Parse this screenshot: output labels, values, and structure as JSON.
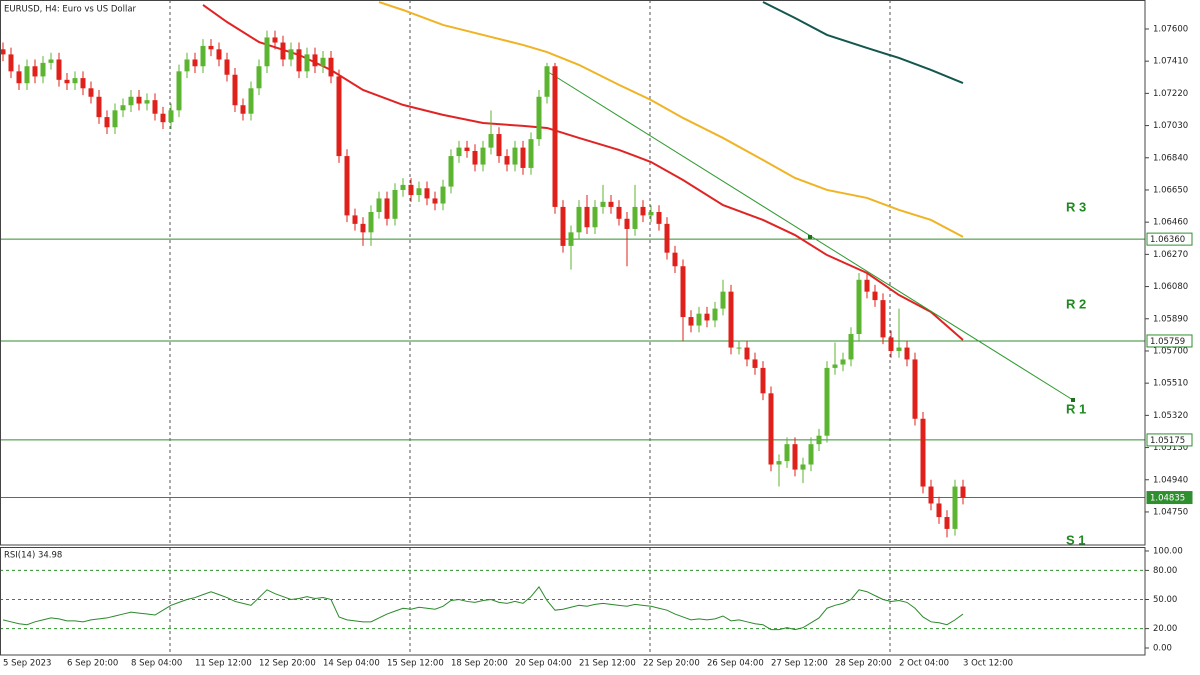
{
  "chart_data": {
    "type": "candlestick",
    "title": "EURUSD, H4:  Euro vs US Dollar",
    "categories": [
      "5 Sep 2023",
      null,
      null,
      null,
      null,
      null,
      null,
      null,
      "6 Sep 20:00",
      null,
      null,
      null,
      null,
      null,
      null,
      null,
      "8 Sep 04:00",
      null,
      null,
      null,
      null,
      null,
      null,
      null,
      "11 Sep 12:00",
      null,
      null,
      null,
      null,
      null,
      null,
      null,
      "12 Sep 20:00",
      null,
      null,
      null,
      null,
      null,
      null,
      null,
      "14 Sep 04:00",
      null,
      null,
      null,
      null,
      null,
      null,
      null,
      "15 Sep 12:00",
      null,
      null,
      null,
      null,
      null,
      null,
      null,
      "18 Sep 20:00",
      null,
      null,
      null,
      null,
      null,
      null,
      null,
      "20 Sep 04:00",
      null,
      null,
      null,
      null,
      null,
      null,
      null,
      "21 Sep 12:00",
      null,
      null,
      null,
      null,
      null,
      null,
      null,
      "22 Sep 20:00",
      null,
      null,
      null,
      null,
      null,
      null,
      null,
      "26 Sep 04:00",
      null,
      null,
      null,
      null,
      null,
      null,
      null,
      "27 Sep 12:00",
      null,
      null,
      null,
      null,
      null,
      null,
      null,
      "28 Sep 20:00",
      null,
      null,
      null,
      null,
      null,
      null,
      null,
      "2 Oct 04:00",
      null,
      null,
      null,
      null,
      null,
      null,
      null,
      "3 Oct 12:00"
    ],
    "open": [
      1.0748,
      1.0745,
      1.0735,
      1.0728,
      1.0738,
      1.0732,
      1.074,
      1.0742,
      1.073,
      1.0728,
      1.0731,
      1.0725,
      1.072,
      1.0708,
      1.0702,
      1.0712,
      1.0715,
      1.072,
      1.0716,
      1.0718,
      1.071,
      1.0705,
      1.0712,
      1.0735,
      1.0742,
      1.0738,
      1.075,
      1.0748,
      1.0742,
      1.0733,
      1.0715,
      1.071,
      1.0725,
      1.0738,
      1.0755,
      1.0752,
      1.0742,
      1.0748,
      1.0735,
      1.0745,
      1.0738,
      1.0743,
      1.0732,
      1.0685,
      1.065,
      1.0645,
      1.064,
      1.0652,
      1.066,
      1.0648,
      1.0665,
      1.0668,
      1.0662,
      1.0666,
      1.066,
      1.0657,
      1.0667,
      1.0685,
      1.069,
      1.0688,
      1.068,
      1.069,
      1.0698,
      1.0685,
      1.068,
      1.069,
      1.0678,
      1.0695,
      1.072,
      1.0738,
      1.0655,
      1.0632,
      1.064,
      1.0655,
      1.0643,
      1.0655,
      1.0658,
      1.0655,
      1.0648,
      1.0642,
      1.0655,
      1.065,
      1.0652,
      1.0645,
      1.0628,
      1.062,
      1.059,
      1.0585,
      1.0592,
      1.0588,
      1.0595,
      1.0605,
      1.0572,
      1.0572,
      1.0565,
      1.056,
      1.0545,
      1.0503,
      1.0505,
      1.0515,
      1.05,
      1.0503,
      1.0515,
      1.052,
      1.056,
      1.0562,
      1.0565,
      1.058,
      1.0612,
      1.0605,
      1.06,
      1.0578,
      1.057,
      1.0572,
      1.0565,
      1.053,
      1.049,
      1.048,
      1.0472,
      1.0465,
      1.049
    ],
    "high": [
      1.0752,
      1.0749,
      1.0739,
      1.0742,
      1.0742,
      1.0744,
      1.0746,
      1.0746,
      1.0734,
      1.0735,
      1.0735,
      1.0729,
      1.0724,
      1.0712,
      1.0716,
      1.0719,
      1.0724,
      1.0724,
      1.0722,
      1.0722,
      1.0714,
      1.0716,
      1.0739,
      1.0746,
      1.0746,
      1.0754,
      1.0754,
      1.0752,
      1.0746,
      1.0737,
      1.0719,
      1.0729,
      1.0742,
      1.0759,
      1.0759,
      1.0756,
      1.0752,
      1.0752,
      1.0749,
      1.0749,
      1.0747,
      1.0747,
      1.0736,
      1.0689,
      1.0654,
      1.0649,
      1.0656,
      1.0664,
      1.0664,
      1.0669,
      1.0672,
      1.0672,
      1.067,
      1.067,
      1.0664,
      1.0671,
      1.0689,
      1.0694,
      1.0694,
      1.0692,
      1.0694,
      1.0712,
      1.0702,
      1.0689,
      1.0694,
      1.0694,
      1.0699,
      1.0724,
      1.074,
      1.074,
      1.0659,
      1.0644,
      1.0659,
      1.0662,
      1.0659,
      1.0668,
      1.0662,
      1.0659,
      1.0652,
      1.0668,
      1.0659,
      1.0656,
      1.0656,
      1.0649,
      1.0632,
      1.0624,
      1.0594,
      1.0596,
      1.0596,
      1.0599,
      1.0612,
      1.0609,
      1.0576,
      1.0576,
      1.0569,
      1.0564,
      1.0549,
      1.0509,
      1.0519,
      1.0519,
      1.0507,
      1.0519,
      1.0524,
      1.0564,
      1.0575,
      1.0569,
      1.0584,
      1.0616,
      1.0616,
      1.0609,
      1.0604,
      1.0582,
      1.0595,
      1.0576,
      1.0569,
      1.0534,
      1.0494,
      1.0484,
      1.0476,
      1.0494,
      1.0494
    ],
    "low": [
      1.0741,
      1.0731,
      1.0724,
      1.0724,
      1.0728,
      1.0728,
      1.0736,
      1.0726,
      1.0724,
      1.0724,
      1.0721,
      1.0716,
      1.0704,
      1.0698,
      1.0698,
      1.0708,
      1.0711,
      1.0712,
      1.0712,
      1.0706,
      1.0701,
      1.0701,
      1.0708,
      1.0731,
      1.0734,
      1.0734,
      1.0744,
      1.0738,
      1.0729,
      1.0711,
      1.0706,
      1.0706,
      1.0721,
      1.0734,
      1.0748,
      1.0738,
      1.0738,
      1.0731,
      1.0731,
      1.0734,
      1.0734,
      1.0728,
      1.0681,
      1.0646,
      1.0641,
      1.0632,
      1.0632,
      1.0648,
      1.0644,
      1.0644,
      1.0661,
      1.0658,
      1.0658,
      1.0656,
      1.0653,
      1.0653,
      1.0663,
      1.0681,
      1.0684,
      1.0676,
      1.0676,
      1.0686,
      1.0681,
      1.0676,
      1.0676,
      1.0674,
      1.0674,
      1.0691,
      1.0716,
      1.0651,
      1.0628,
      1.0618,
      1.0636,
      1.0639,
      1.0639,
      1.0651,
      1.0651,
      1.0644,
      1.062,
      1.0638,
      1.0646,
      1.0646,
      1.0641,
      1.0624,
      1.0616,
      1.0576,
      1.0581,
      1.0581,
      1.0584,
      1.0584,
      1.0591,
      1.0568,
      1.0568,
      1.0561,
      1.0556,
      1.0541,
      1.0499,
      1.049,
      1.0501,
      1.0496,
      1.0492,
      1.0499,
      1.0511,
      1.0516,
      1.0556,
      1.0558,
      1.0561,
      1.0576,
      1.0601,
      1.0596,
      1.0574,
      1.0566,
      1.0566,
      1.0561,
      1.0526,
      1.0486,
      1.0476,
      1.0468,
      1.046,
      1.0461,
      1.04795
    ],
    "close": [
      1.0745,
      1.0735,
      1.0728,
      1.0738,
      1.0732,
      1.074,
      1.0742,
      1.073,
      1.0728,
      1.0731,
      1.0725,
      1.072,
      1.0708,
      1.0702,
      1.0712,
      1.0715,
      1.072,
      1.0716,
      1.0718,
      1.071,
      1.0705,
      1.0712,
      1.0735,
      1.0742,
      1.0738,
      1.075,
      1.0748,
      1.0742,
      1.0733,
      1.0715,
      1.071,
      1.0725,
      1.0738,
      1.0755,
      1.0752,
      1.0742,
      1.0748,
      1.0735,
      1.0745,
      1.0738,
      1.0743,
      1.0732,
      1.0685,
      1.065,
      1.0645,
      1.064,
      1.0652,
      1.066,
      1.0648,
      1.0665,
      1.0668,
      1.0662,
      1.0666,
      1.066,
      1.0657,
      1.0667,
      1.0685,
      1.069,
      1.0688,
      1.068,
      1.069,
      1.0698,
      1.0685,
      1.068,
      1.069,
      1.0678,
      1.0695,
      1.072,
      1.0738,
      1.0655,
      1.0632,
      1.064,
      1.0655,
      1.0643,
      1.0655,
      1.0658,
      1.0655,
      1.0648,
      1.0642,
      1.0655,
      1.065,
      1.0652,
      1.0645,
      1.0628,
      1.062,
      1.059,
      1.0585,
      1.0592,
      1.0588,
      1.0595,
      1.0605,
      1.0572,
      1.0572,
      1.0565,
      1.056,
      1.0545,
      1.0503,
      1.0505,
      1.0515,
      1.05,
      1.0503,
      1.0515,
      1.052,
      1.056,
      1.0562,
      1.0565,
      1.058,
      1.0612,
      1.0605,
      1.06,
      1.0578,
      1.057,
      1.0572,
      1.0565,
      1.053,
      1.049,
      1.048,
      1.0472,
      1.0465,
      1.049,
      1.04835
    ],
    "up_color": "#5cb531",
    "down_color": "#e0201b",
    "ylim": [
      1.04555,
      1.07771
    ],
    "yticks": [
      {
        "value": 1.076,
        "label": "1.07600"
      },
      {
        "value": 1.0741,
        "label": "1.07410"
      },
      {
        "value": 1.0722,
        "label": "1.07220"
      },
      {
        "value": 1.0703,
        "label": "1.07030"
      },
      {
        "value": 1.0684,
        "label": "1.06840"
      },
      {
        "value": 1.0665,
        "label": "1.06650"
      },
      {
        "value": 1.0646,
        "label": "1.06460"
      },
      {
        "value": 1.0627,
        "label": "1.06270"
      },
      {
        "value": 1.0608,
        "label": "1.06080"
      },
      {
        "value": 1.0589,
        "label": "1.05890"
      },
      {
        "value": 1.057,
        "label": "1.05700"
      },
      {
        "value": 1.0551,
        "label": "1.05510"
      },
      {
        "value": 1.0532,
        "label": "1.05320"
      },
      {
        "value": 1.0513,
        "label": "1.05130"
      },
      {
        "value": 1.0494,
        "label": "1.04940"
      },
      {
        "value": 1.0475,
        "label": "1.04750"
      }
    ],
    "moving_averages": [
      {
        "color": "#e02424",
        "x": [
          25,
          28,
          32,
          37,
          41,
          45,
          50,
          55,
          60,
          65,
          68,
          72,
          77,
          81,
          85,
          90,
          95,
          99,
          103,
          108,
          112,
          116,
          120
        ],
        "values": [
          1.07742,
          1.07641,
          1.07523,
          1.07447,
          1.07358,
          1.0724,
          1.07152,
          1.07093,
          1.07045,
          1.07028,
          1.07016,
          1.06957,
          1.06886,
          1.06815,
          1.06709,
          1.06561,
          1.06473,
          1.06384,
          1.06266,
          1.0616,
          1.0603,
          1.0593,
          1.05765
        ]
      },
      {
        "color": "#f0b323",
        "x": [
          47,
          50,
          55,
          60,
          65,
          68,
          72,
          77,
          81,
          85,
          90,
          95,
          99,
          103,
          108,
          112,
          116,
          120
        ],
        "values": [
          1.07759,
          1.07712,
          1.07624,
          1.07565,
          1.07506,
          1.07464,
          1.07388,
          1.0727,
          1.07181,
          1.07075,
          1.06957,
          1.06827,
          1.06721,
          1.0665,
          1.06603,
          1.06532,
          1.06473,
          1.06373
        ]
      },
      {
        "color": "#13574f",
        "x": [
          95,
          99,
          103,
          108,
          112,
          116,
          120
        ],
        "values": [
          1.07759,
          1.07665,
          1.07565,
          1.07488,
          1.07429,
          1.07358,
          1.07281
        ]
      }
    ],
    "levels": [
      {
        "value": 1.0636,
        "label": "1.06360"
      },
      {
        "value": 1.05759,
        "label": "1.05759"
      },
      {
        "value": 1.05175,
        "label": "1.05175"
      },
      {
        "value": 1.04835,
        "label": "1.04835"
      }
    ],
    "level_color": "#2f8f2f",
    "zone_labels": [
      "R 3",
      "R 2",
      "R 1",
      "S 1"
    ],
    "rsi": {
      "type": "line",
      "title": "RSI(14) 34.98",
      "color": "#2a8a2a",
      "values": [
        29,
        27,
        25,
        24,
        27,
        29,
        31,
        30,
        28,
        28,
        27,
        29,
        30,
        31,
        33,
        35,
        37,
        36,
        35,
        34,
        39,
        44,
        47,
        50,
        52,
        55,
        58,
        55,
        52,
        48,
        46,
        44,
        52,
        60,
        56,
        53,
        50,
        51,
        53,
        51,
        52,
        50,
        32,
        29,
        28,
        27,
        27,
        31,
        35,
        38,
        41,
        40,
        42,
        41,
        40,
        43,
        49,
        50,
        48,
        47,
        49,
        50,
        47,
        46,
        48,
        46,
        53,
        63,
        49,
        39,
        40,
        42,
        44,
        43,
        45,
        46,
        45,
        44,
        43,
        45,
        44,
        43,
        41,
        39,
        35,
        32,
        29,
        30,
        29,
        30,
        33,
        28,
        29,
        27,
        25,
        24,
        19,
        19,
        21,
        19,
        21,
        26,
        31,
        41,
        44,
        46,
        50,
        60,
        58,
        54,
        50,
        48,
        49,
        47,
        41,
        32,
        27,
        26,
        24,
        29,
        34.98
      ],
      "ylim": [
        -7.2,
        104.1
      ],
      "yticks": [
        {
          "value": 100,
          "label": "100.00"
        },
        {
          "value": 80,
          "label": "80.00"
        },
        {
          "value": 50,
          "label": "50.00"
        },
        {
          "value": 20,
          "label": "20.00"
        },
        {
          "value": 0,
          "label": "0.00"
        }
      ]
    }
  }
}
